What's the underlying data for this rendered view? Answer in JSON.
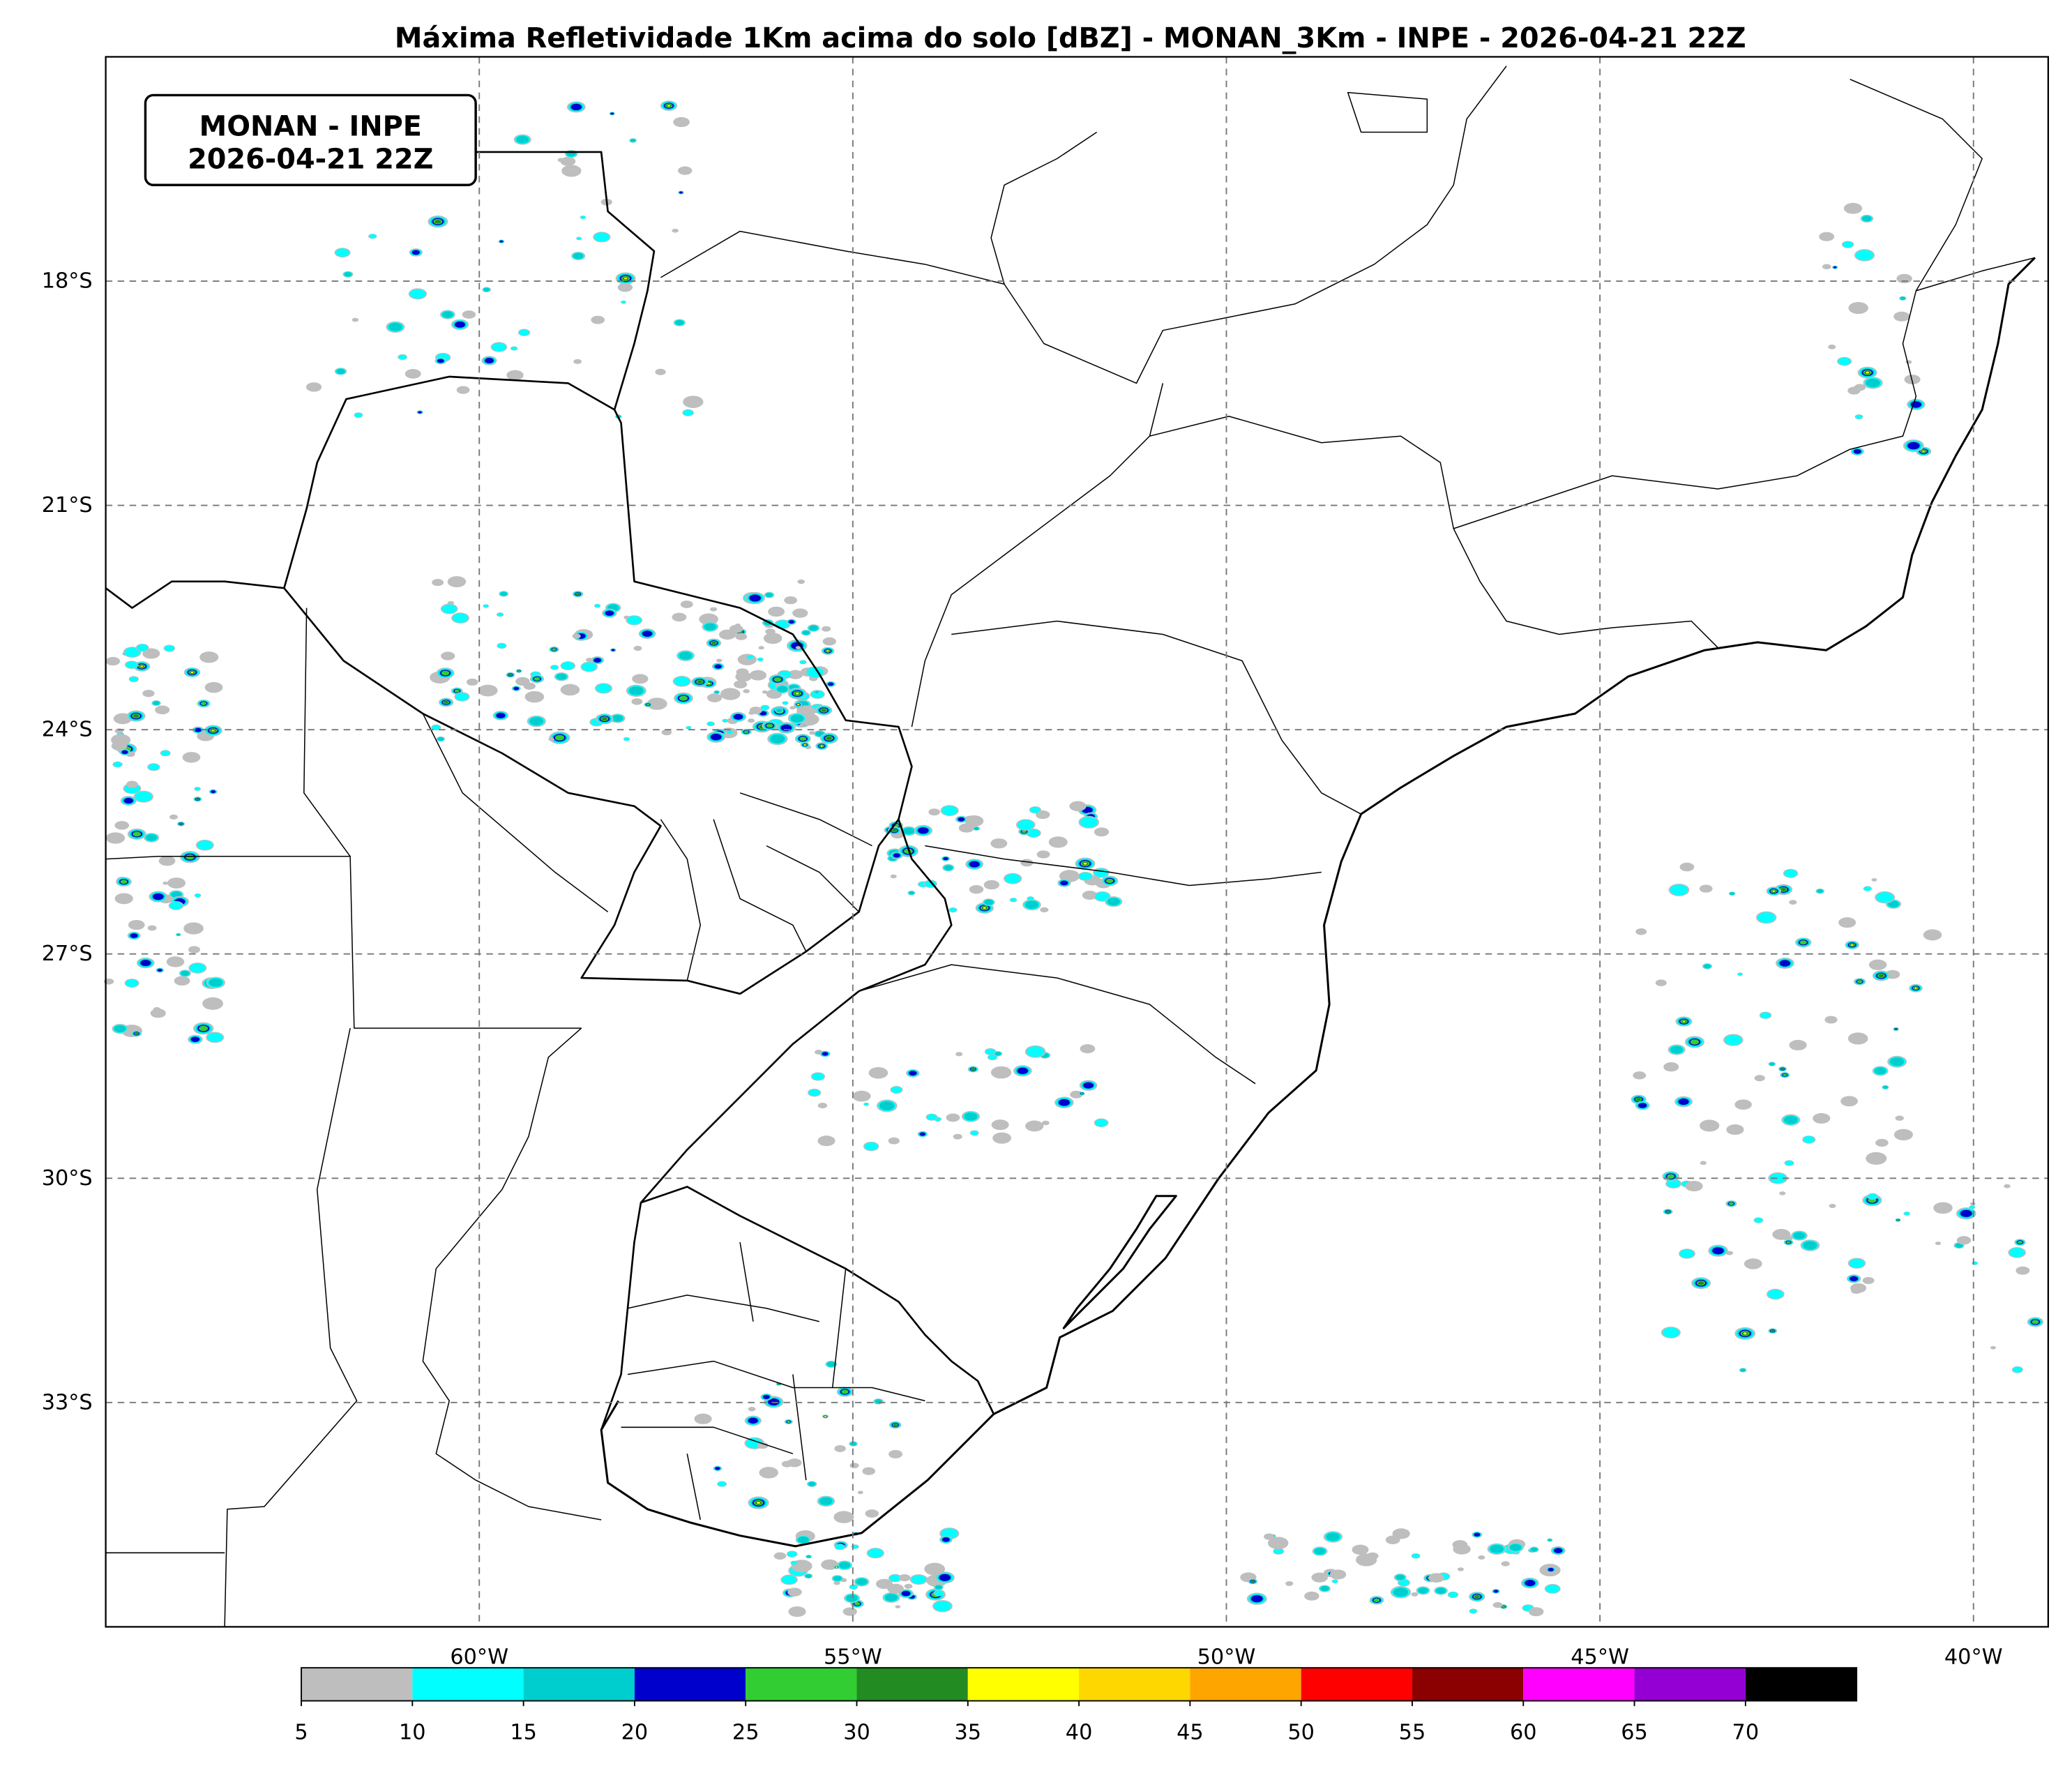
{
  "title": "Máxima Refletividade 1Km acima do solo [dBZ] - MONAN_3Km - INPE - 2026-04-21 22Z",
  "label_box": {
    "line1": "MONAN - INPE",
    "line2": "2026-04-21 22Z"
  },
  "map": {
    "xlim": [
      -65,
      -39
    ],
    "ylim": [
      -15,
      -36
    ],
    "lat_ticks": [
      {
        "value": -18,
        "label": "18°S"
      },
      {
        "value": -21,
        "label": "21°S"
      },
      {
        "value": -24,
        "label": "24°S"
      },
      {
        "value": -27,
        "label": "27°S"
      },
      {
        "value": -30,
        "label": "30°S"
      },
      {
        "value": -33,
        "label": "33°S"
      }
    ],
    "lon_ticks": [
      {
        "value": -60,
        "label": "60°W"
      },
      {
        "value": -55,
        "label": "55°W"
      },
      {
        "value": -50,
        "label": "50°W"
      },
      {
        "value": -45,
        "label": "45°W"
      },
      {
        "value": -40,
        "label": "40°W"
      }
    ]
  },
  "colorbar": {
    "range": [
      5,
      75
    ],
    "ticks": [
      5,
      10,
      15,
      20,
      25,
      30,
      35,
      40,
      45,
      50,
      55,
      60,
      65,
      70
    ],
    "colors": [
      "#bebebe",
      "#00ffff",
      "#00cdcd",
      "#0000cd",
      "#32cd32",
      "#228b22",
      "#ffff00",
      "#ffd700",
      "#ffa500",
      "#ff0000",
      "#8b0000",
      "#ff00ff",
      "#9400d3",
      "#000000"
    ]
  }
}
